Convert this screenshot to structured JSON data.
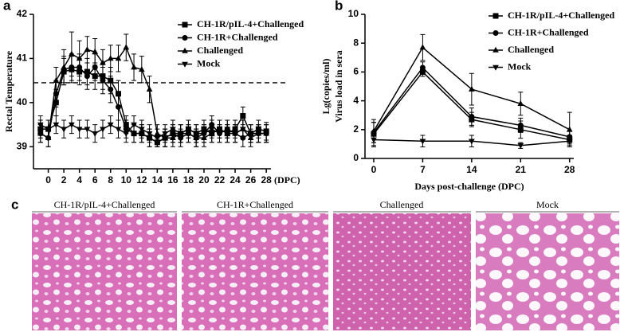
{
  "chart_data": [
    {
      "type": "line",
      "panel_label": "a",
      "y_label": "Rectal Temperature",
      "x_label": "(DPC)",
      "x": [
        -1,
        0,
        1,
        2,
        3,
        4,
        5,
        6,
        7,
        8,
        9,
        10,
        11,
        12,
        13,
        14,
        15,
        16,
        17,
        18,
        19,
        20,
        21,
        22,
        23,
        24,
        25,
        26,
        27,
        28
      ],
      "xlim": [
        -1.9,
        28.6
      ],
      "xticks": [
        0,
        2,
        4,
        6,
        8,
        10,
        12,
        14,
        16,
        18,
        20,
        22,
        24,
        26,
        28
      ],
      "ylim": [
        38.5,
        42
      ],
      "yticks": [
        39,
        40,
        41,
        42
      ],
      "hline": 40.45,
      "legend": "upper right",
      "series": [
        {
          "name": "CH-1R/pIL-4+Challenged",
          "color": "#000000",
          "marker": "square",
          "values": [
            39.4,
            39.4,
            40.0,
            40.7,
            40.75,
            40.7,
            40.7,
            40.6,
            40.6,
            40.5,
            40.2,
            39.5,
            39.3,
            39.3,
            39.2,
            39.1,
            39.2,
            39.3,
            39.3,
            39.4,
            39.3,
            39.4,
            39.3,
            39.4,
            39.3,
            39.4,
            39.7,
            39.3,
            39.4,
            39.35
          ],
          "errors": [
            0.2,
            0.2,
            0.3,
            0.3,
            0.3,
            0.3,
            0.3,
            0.3,
            0.3,
            0.3,
            0.3,
            0.2,
            0.2,
            0.2,
            0.2,
            0.1,
            0.2,
            0.2,
            0.2,
            0.2,
            0.2,
            0.2,
            0.2,
            0.2,
            0.2,
            0.2,
            0.2,
            0.2,
            0.2,
            0.2
          ]
        },
        {
          "name": "CH-1R+Challenged",
          "color": "#000000",
          "marker": "circle",
          "values": [
            39.3,
            39.2,
            40.2,
            40.75,
            40.8,
            40.8,
            40.6,
            40.8,
            40.5,
            40.3,
            39.9,
            39.4,
            39.3,
            39.3,
            39.2,
            39.1,
            39.2,
            39.3,
            39.2,
            39.3,
            39.2,
            39.3,
            39.5,
            39.3,
            39.4,
            39.3,
            39.2,
            39.3,
            39.3,
            39.3
          ],
          "errors": [
            0.2,
            0.2,
            0.3,
            0.3,
            0.3,
            0.3,
            0.3,
            0.3,
            0.3,
            0.3,
            0.3,
            0.2,
            0.2,
            0.2,
            0.2,
            0.1,
            0.2,
            0.2,
            0.2,
            0.2,
            0.2,
            0.2,
            0.2,
            0.2,
            0.2,
            0.2,
            0.2,
            0.2,
            0.2,
            0.2
          ]
        },
        {
          "name": "Challenged",
          "color": "#000000",
          "marker": "triangle",
          "values": [
            39.3,
            39.2,
            40.5,
            40.8,
            41.1,
            41.0,
            41.2,
            41.15,
            40.9,
            41.0,
            41.0,
            41.25,
            40.8,
            40.75,
            40.3,
            39.3,
            39.2,
            39.2,
            39.3,
            39.3,
            39.2,
            39.2,
            39.3,
            39.4,
            39.3,
            39.3,
            39.4,
            39.2,
            39.3,
            39.3
          ],
          "errors": [
            0.2,
            0.2,
            0.3,
            0.4,
            0.5,
            0.4,
            0.3,
            0.3,
            0.3,
            0.3,
            0.3,
            0.3,
            0.3,
            0.3,
            0.3,
            0.2,
            0.2,
            0.2,
            0.2,
            0.2,
            0.2,
            0.2,
            0.2,
            0.2,
            0.2,
            0.2,
            0.2,
            0.2,
            0.2,
            0.2
          ]
        },
        {
          "name": "Mock",
          "color": "#000000",
          "marker": "triangle-down",
          "values": [
            39.5,
            39.4,
            39.5,
            39.4,
            39.5,
            39.4,
            39.4,
            39.3,
            39.4,
            39.5,
            39.4,
            39.3,
            39.5,
            39.4,
            39.3,
            39.2,
            39.3,
            39.4,
            39.3,
            39.4,
            39.3,
            39.3,
            39.4,
            39.3,
            39.4,
            39.3,
            39.4,
            39.3,
            39.3,
            39.3
          ],
          "errors": [
            0.2,
            0.2,
            0.2,
            0.2,
            0.2,
            0.2,
            0.2,
            0.2,
            0.2,
            0.2,
            0.2,
            0.2,
            0.2,
            0.2,
            0.2,
            0.2,
            0.2,
            0.2,
            0.2,
            0.2,
            0.2,
            0.2,
            0.2,
            0.2,
            0.2,
            0.2,
            0.2,
            0.2,
            0.2,
            0.2
          ]
        }
      ]
    },
    {
      "type": "line",
      "panel_label": "b",
      "y_label": [
        "Lg(copies/ml)",
        "Virus load in sera"
      ],
      "x_label": "Days post-challenge (DPC)",
      "x": [
        0,
        7,
        14,
        21,
        28
      ],
      "xlim": [
        -1.25,
        28.6
      ],
      "xticks": [
        0,
        7,
        14,
        21,
        28
      ],
      "ylim": [
        0,
        10
      ],
      "yticks": [
        0,
        2,
        4,
        6,
        8,
        10
      ],
      "legend": "upper right",
      "series": [
        {
          "name": "CH-1R/pIL-4+Challenged",
          "color": "#000000",
          "marker": "square",
          "values": [
            1.7,
            6.0,
            2.7,
            2.0,
            1.3
          ],
          "errors": [
            0.8,
            0.3,
            0.5,
            0.6,
            0.3
          ]
        },
        {
          "name": "CH-1R+Challenged",
          "color": "#000000",
          "marker": "circle",
          "values": [
            1.8,
            6.3,
            2.9,
            2.3,
            1.5
          ],
          "errors": [
            0.7,
            0.4,
            0.6,
            0.5,
            0.4
          ]
        },
        {
          "name": "Challenged",
          "color": "#000000",
          "marker": "triangle",
          "values": [
            1.9,
            7.7,
            4.8,
            3.8,
            2.0
          ],
          "errors": [
            0.8,
            0.9,
            1.1,
            0.8,
            1.2
          ]
        },
        {
          "name": "Mock",
          "color": "#000000",
          "marker": "triangle-down",
          "values": [
            1.3,
            1.2,
            1.2,
            0.9,
            1.2
          ],
          "errors": [
            0.5,
            0.4,
            0.4,
            0.2,
            0.3
          ]
        }
      ]
    }
  ],
  "panel_c": {
    "label": "c",
    "images": [
      {
        "caption": "CH-1R/pIL-4+Challenged"
      },
      {
        "caption": "CH-1R+Challenged"
      },
      {
        "caption": "Challenged"
      },
      {
        "caption": "Mock"
      }
    ]
  }
}
